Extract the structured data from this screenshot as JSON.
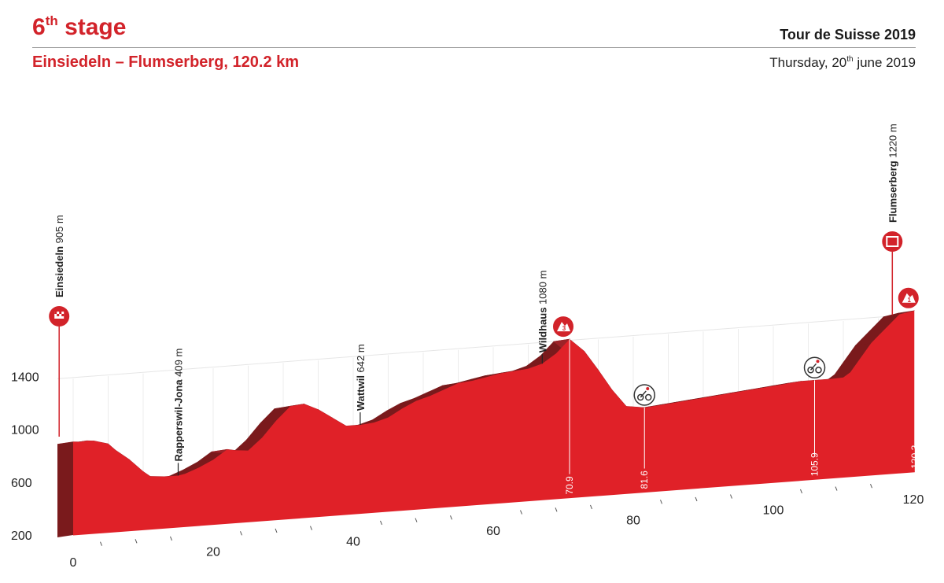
{
  "header": {
    "stage_num": "6",
    "stage_sup": "th",
    "stage_word": " stage",
    "race": "Tour de Suisse 2019",
    "route": "Einsiedeln – Flumserberg, 120.2 km",
    "date_pre": "Thursday, 20",
    "date_sup": "th",
    "date_post": " june 2019"
  },
  "colors": {
    "accent": "#d2232a",
    "fill": "#e02128",
    "side": "#7a1a1c",
    "top": "#9c2328"
  },
  "chart_data": {
    "type": "area",
    "title": "",
    "xlabel": "",
    "ylabel": "",
    "xlim": [
      0,
      120.2
    ],
    "ylim": [
      200,
      1400
    ],
    "x_ticks": [
      0,
      20,
      40,
      60,
      80,
      100,
      120
    ],
    "y_ticks": [
      200,
      600,
      1000,
      1400
    ],
    "series": [
      {
        "x": [
          0,
          1,
          2,
          3,
          5,
          6,
          8,
          10,
          11,
          13,
          15,
          16,
          18,
          20,
          22,
          23,
          25,
          27,
          29,
          31,
          33,
          35,
          37,
          39,
          41,
          43,
          45,
          47,
          49,
          51,
          53,
          55,
          57,
          59,
          61,
          63,
          65,
          67,
          69,
          70.9,
          73,
          75,
          77,
          79,
          81.6,
          84,
          86,
          88,
          90,
          92,
          94,
          96,
          98,
          100,
          102,
          104,
          105.9,
          108,
          110,
          111,
          112,
          114,
          116,
          118,
          120.2
        ],
        "values": [
          905,
          900,
          905,
          900,
          870,
          820,
          740,
          640,
          600,
          590,
          590,
          600,
          640,
          690,
          760,
          750,
          740,
          830,
          950,
          1050,
          1060,
          1010,
          940,
          870,
          870,
          880,
          910,
          970,
          1020,
          1050,
          1090,
          1130,
          1140,
          1160,
          1180,
          1190,
          1200,
          1230,
          1300,
          1400,
          1300,
          1150,
          990,
          860,
          840,
          850,
          860,
          870,
          880,
          890,
          900,
          910,
          920,
          930,
          940,
          950,
          950,
          950,
          955,
          990,
          1060,
          1200,
          1300,
          1400,
          1420
        ]
      }
    ],
    "climbs": [
      {
        "km": 70.9,
        "label": "70.9",
        "badge": "3"
      },
      {
        "km": 120.2,
        "label": "120.2",
        "badge": "1"
      }
    ],
    "sprints": [
      {
        "km": 81.6,
        "label": "81.6"
      },
      {
        "km": 105.9,
        "label": "105.9"
      }
    ],
    "locations": [
      {
        "km": -2,
        "name": "Einsiedeln",
        "alt": "905 m",
        "icon": "start-flag-icon"
      },
      {
        "km": 15,
        "name": "Rapperswil-Jona",
        "alt": "409 m"
      },
      {
        "km": 41,
        "name": "Wattwil",
        "alt": "642 m"
      },
      {
        "km": 67,
        "name": "Wildhaus",
        "alt": "1080 m"
      },
      {
        "km": 117,
        "name": "Flumserberg",
        "alt": "1220 m",
        "icon": "finish-icon"
      }
    ]
  }
}
